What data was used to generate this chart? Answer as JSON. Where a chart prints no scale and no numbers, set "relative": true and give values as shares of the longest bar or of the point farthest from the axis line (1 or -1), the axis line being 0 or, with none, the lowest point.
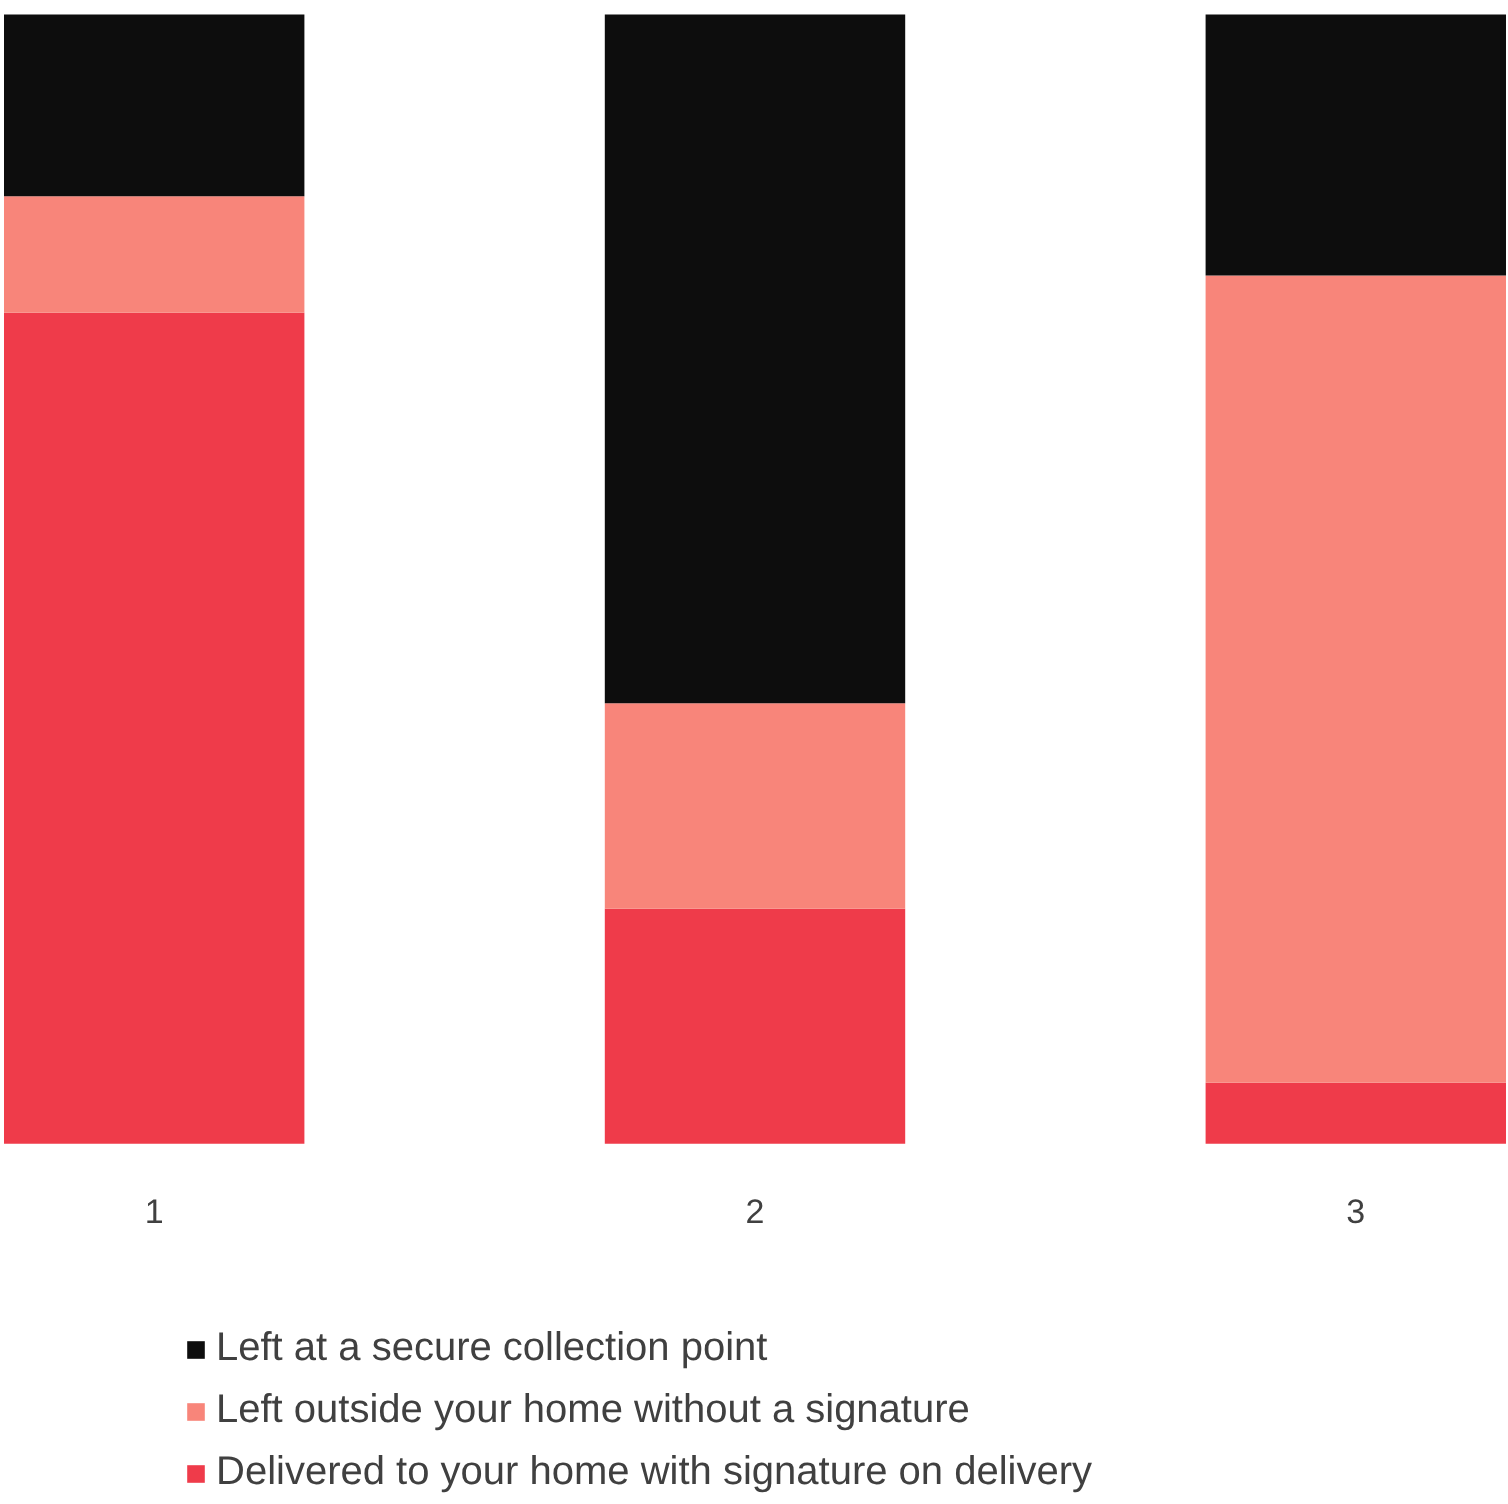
{
  "chart_data": {
    "type": "bar",
    "stacked": true,
    "relative": true,
    "categories": [
      "1",
      "2",
      "3"
    ],
    "legend": "bottom",
    "grid": false,
    "series": [
      {
        "name": "Delivered to your home with signature on delivery",
        "color": "#ef3b4a",
        "values": [
          0.736,
          0.208,
          0.054
        ]
      },
      {
        "name": "Left outside your home without a signature",
        "color": "#f8857a",
        "values": [
          0.103,
          0.182,
          0.715
        ]
      },
      {
        "name": "Left at a secure collection point",
        "color": "#0d0d0d",
        "values": [
          0.161,
          0.61,
          0.231
        ]
      }
    ]
  }
}
